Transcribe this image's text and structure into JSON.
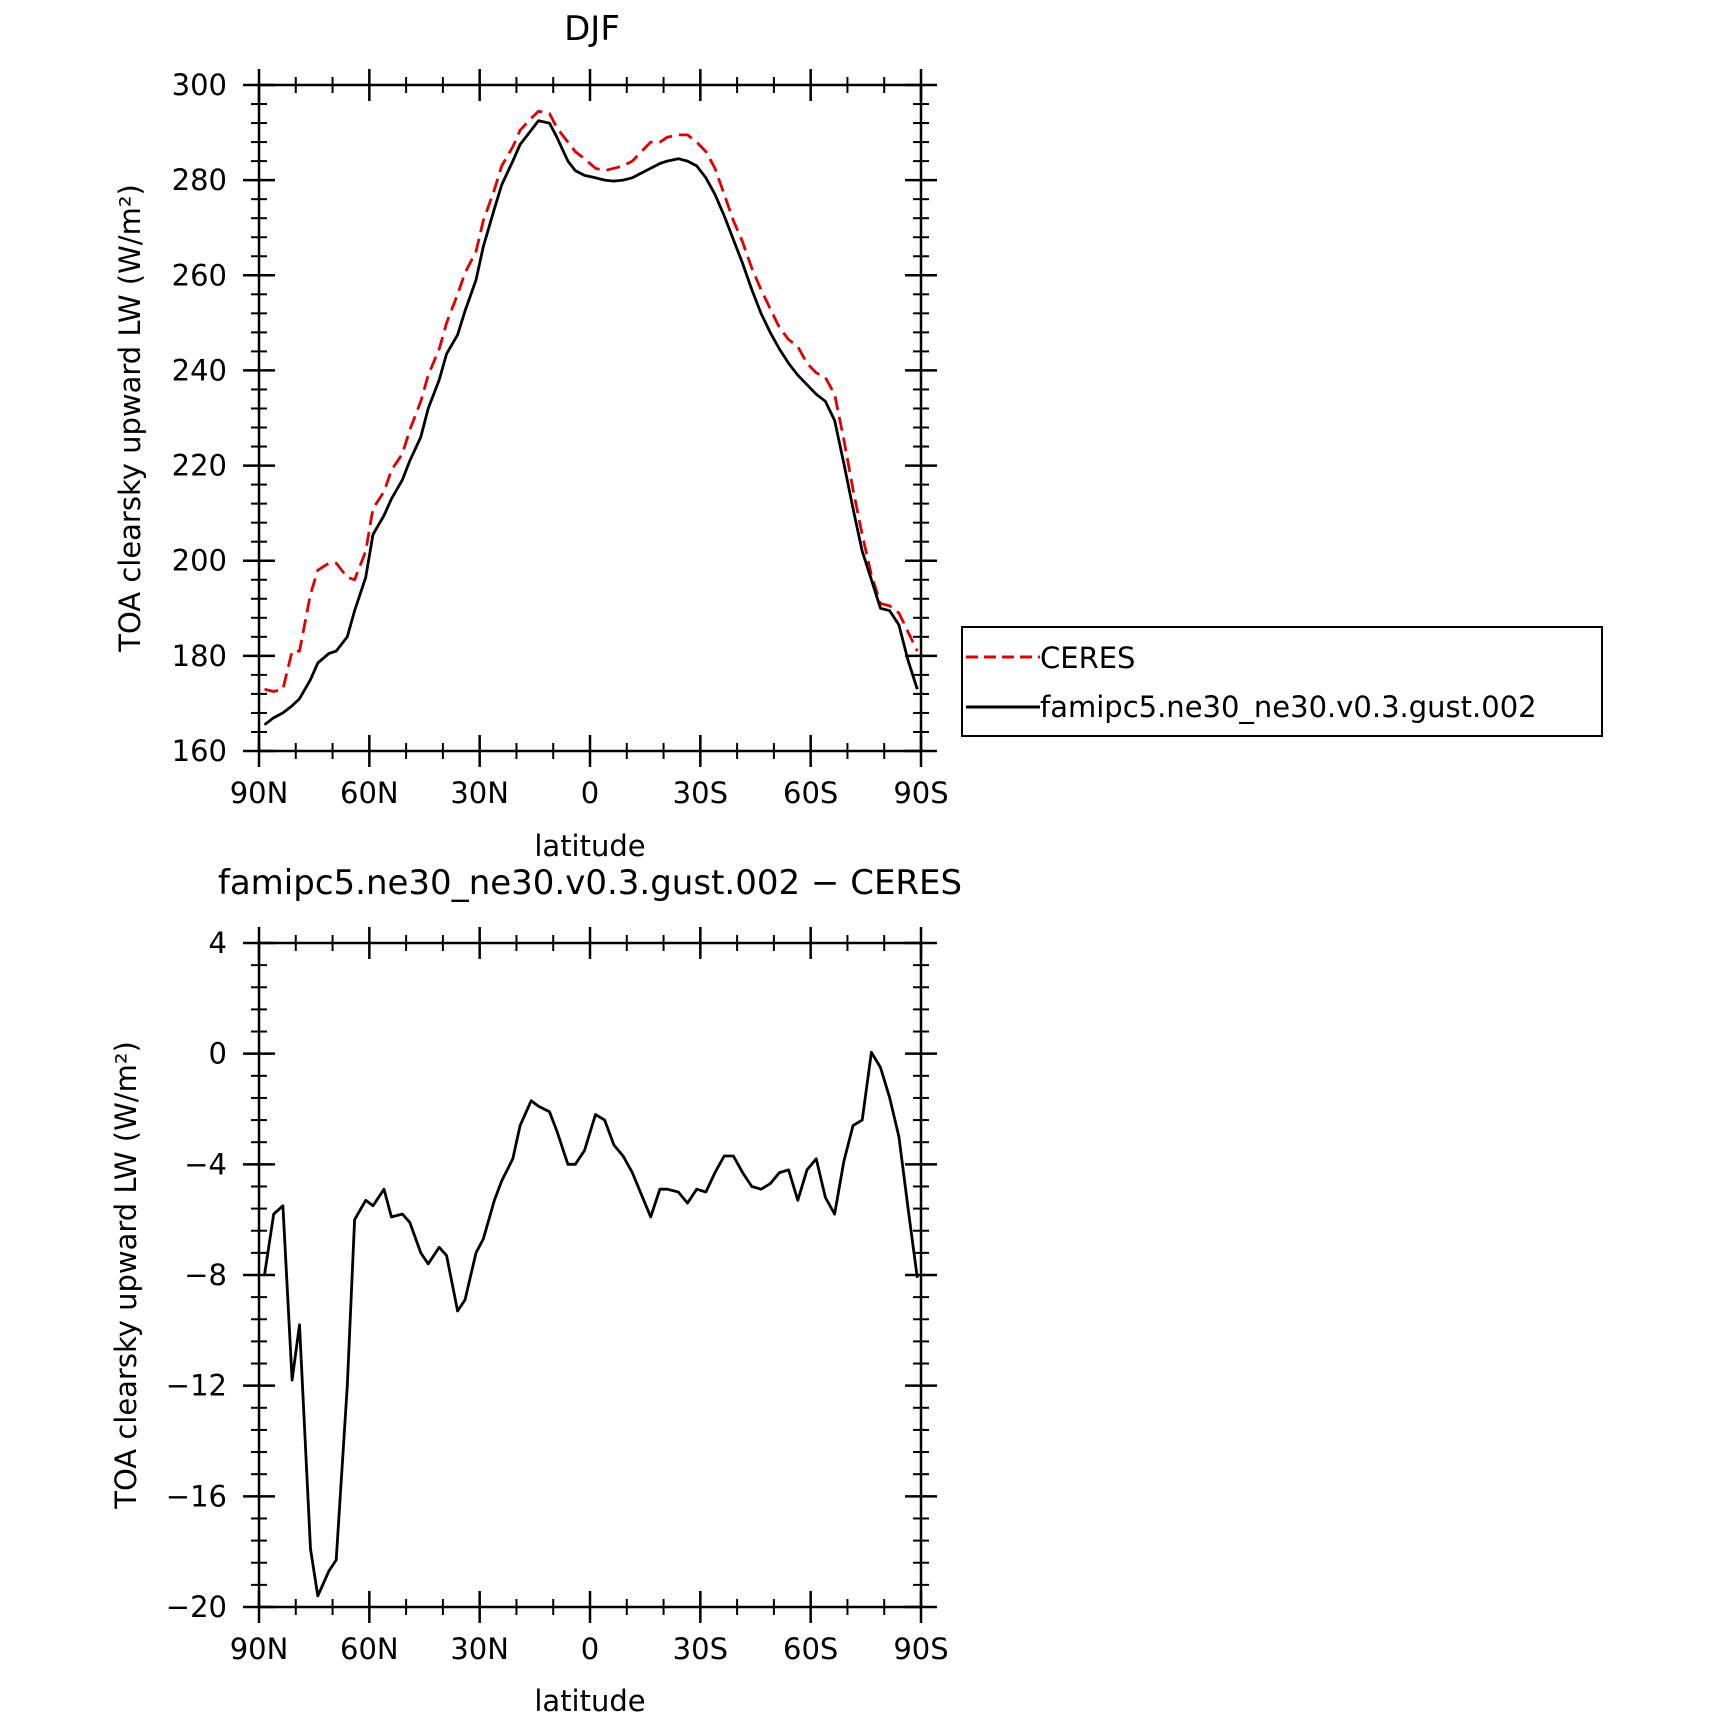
{
  "chart_data": [
    {
      "type": "line",
      "title": "DJF",
      "xlabel": "latitude",
      "ylabel": "TOA clearsky upward LW (W/m²)",
      "xlim": [
        90,
        -90
      ],
      "ylim": [
        160,
        300
      ],
      "x_ticks": [
        90,
        60,
        30,
        0,
        -30,
        -60,
        -90
      ],
      "x_tick_labels": [
        "90N",
        "60N",
        "30N",
        "0",
        "30S",
        "60S",
        "90S"
      ],
      "y_ticks": [
        160,
        180,
        200,
        220,
        240,
        260,
        280,
        300
      ],
      "y_tick_labels": [
        "160",
        "180",
        "200",
        "220",
        "240",
        "260",
        "280",
        "300"
      ],
      "legend": "outside-right",
      "series": [
        {
          "name": "CERES",
          "color": "#e00000",
          "dash": "dashed",
          "x": [
            88.5,
            86,
            83.5,
            81,
            79,
            76,
            74,
            71,
            69,
            66,
            64,
            61,
            59,
            56,
            54,
            51,
            49,
            46,
            44,
            41,
            39,
            36,
            34,
            31,
            29,
            26,
            24,
            21,
            19,
            16,
            14,
            11,
            9,
            6,
            4,
            1.5,
            -1.5,
            -4,
            -6.5,
            -9,
            -11.5,
            -14,
            -16.5,
            -19,
            -21,
            -24,
            -26.5,
            -29,
            -31.5,
            -34,
            -36.5,
            -39,
            -41.5,
            -44,
            -46.5,
            -49,
            -51.5,
            -54,
            -56.5,
            -59,
            -61.5,
            -64,
            -66.5,
            -69,
            -71.5,
            -74,
            -76.5,
            -79,
            -81.5,
            -84,
            -86.5,
            -89
          ],
          "y": [
            173,
            172.5,
            173,
            181,
            181,
            193,
            198,
            199.5,
            199.5,
            196.5,
            196,
            202,
            211,
            214.5,
            219,
            222.5,
            227.5,
            233.5,
            239,
            244.5,
            250,
            256,
            260.5,
            265,
            271.5,
            278,
            283,
            287,
            290.5,
            293,
            294.5,
            294,
            291,
            288,
            286,
            284.5,
            282.5,
            282,
            282.5,
            283,
            284,
            286,
            288,
            288,
            289,
            289.5,
            289.5,
            288,
            286,
            282.5,
            277,
            271.5,
            267,
            261.5,
            257,
            253,
            249,
            246.5,
            245,
            241.5,
            239.5,
            238.5,
            235,
            225.5,
            215,
            205.5,
            197,
            191,
            190.5,
            189,
            185,
            181
          ]
        },
        {
          "name": "famipc5.ne30_ne30.v0.3.gust.002",
          "color": "#000000",
          "dash": "solid",
          "x": [
            88.5,
            86,
            83.5,
            81,
            79,
            76,
            74,
            71,
            69,
            66,
            64,
            61,
            59,
            56,
            54,
            51,
            49,
            46,
            44,
            41,
            39,
            36,
            34,
            31,
            29,
            26,
            24,
            21,
            19,
            16,
            14,
            11,
            9,
            6,
            4,
            1.5,
            -1.5,
            -4,
            -6.5,
            -9,
            -11.5,
            -14,
            -16.5,
            -19,
            -21,
            -24,
            -26.5,
            -29,
            -31.5,
            -34,
            -36.5,
            -39,
            -41.5,
            -44,
            -46.5,
            -49,
            -51.5,
            -54,
            -56.5,
            -59,
            -61.5,
            -64,
            -66.5,
            -69,
            -71.5,
            -74,
            -76.5,
            -79,
            -81.5,
            -84,
            -86.5,
            -89
          ],
          "y": [
            165.5,
            167,
            168,
            169.5,
            171,
            175,
            178.5,
            180.5,
            181,
            184,
            189.5,
            196.5,
            205.5,
            209.5,
            213,
            217,
            221,
            226,
            232,
            238,
            243.5,
            247.5,
            252.5,
            259,
            266,
            274,
            279,
            284,
            287.5,
            290.5,
            292.5,
            292,
            289,
            284,
            282,
            281,
            280.5,
            280,
            279.8,
            280,
            280.5,
            281.5,
            282.5,
            283.5,
            284,
            284.5,
            284,
            283,
            280.5,
            277,
            272.5,
            267.5,
            262.5,
            257,
            252,
            248,
            244.5,
            241.5,
            239,
            237,
            235,
            233.5,
            229.5,
            220.5,
            211,
            202,
            196,
            190,
            189.5,
            186.5,
            179,
            173
          ]
        }
      ]
    },
    {
      "type": "line",
      "title": "famipc5.ne30_ne30.v0.3.gust.002 − CERES",
      "xlabel": "latitude",
      "ylabel": "TOA clearsky upward LW (W/m²)",
      "xlim": [
        90,
        -90
      ],
      "ylim": [
        -20,
        4
      ],
      "x_ticks": [
        90,
        60,
        30,
        0,
        -30,
        -60,
        -90
      ],
      "x_tick_labels": [
        "90N",
        "60N",
        "30N",
        "0",
        "30S",
        "60S",
        "90S"
      ],
      "y_ticks": [
        -20,
        -16,
        -12,
        -8,
        -4,
        0,
        4
      ],
      "y_tick_labels": [
        "−20",
        "−16",
        "−12",
        "−8",
        "−4",
        "0",
        "4"
      ],
      "series": [
        {
          "color": "#000000",
          "dash": "solid",
          "x": [
            88.5,
            86,
            83.5,
            81,
            79,
            76,
            74,
            71,
            69,
            66,
            64,
            61,
            59,
            56,
            54,
            51,
            49,
            46,
            44,
            41,
            39,
            36,
            34,
            31,
            29,
            26,
            24,
            21,
            19,
            16,
            14,
            11,
            9,
            6,
            4,
            1.5,
            -1.5,
            -4,
            -6.5,
            -9,
            -11.5,
            -14,
            -16.5,
            -19,
            -21,
            -24,
            -26.5,
            -29,
            -31.5,
            -34,
            -36.5,
            -39,
            -41.5,
            -44,
            -46.5,
            -49,
            -51.5,
            -54,
            -56.5,
            -59,
            -61.5,
            -64,
            -66.5,
            -69,
            -71.5,
            -74,
            -76.5,
            -79,
            -81.5,
            -84,
            -86.5,
            -89
          ],
          "y": [
            -8,
            -5.8,
            -5.5,
            -11.8,
            -9.8,
            -17.9,
            -19.6,
            -18.7,
            -18.3,
            -12,
            -6,
            -5.3,
            -5.5,
            -4.9,
            -5.9,
            -5.8,
            -6.1,
            -7.2,
            -7.6,
            -7,
            -7.3,
            -9.3,
            -8.9,
            -7.2,
            -6.7,
            -5.3,
            -4.6,
            -3.8,
            -2.6,
            -1.7,
            -1.9,
            -2.1,
            -2.8,
            -4,
            -4,
            -3.5,
            -2.2,
            -2.4,
            -3.3,
            -3.7,
            -4.3,
            -5.1,
            -5.9,
            -4.9,
            -4.9,
            -5,
            -5.4,
            -4.9,
            -5,
            -4.3,
            -3.7,
            -3.7,
            -4.3,
            -4.8,
            -4.9,
            -4.7,
            -4.3,
            -4.2,
            -5.3,
            -4.2,
            -3.8,
            -5.2,
            -5.8,
            -3.9,
            -2.6,
            -2.4,
            0.05,
            -0.5,
            -1.6,
            -3,
            -5.6,
            -8.1
          ]
        }
      ]
    }
  ]
}
